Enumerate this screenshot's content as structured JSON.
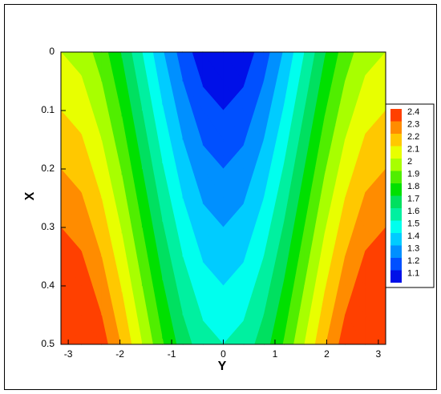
{
  "chart_data": {
    "type": "contour",
    "xlabel": "Y",
    "ylabel": "X",
    "x": [
      -3.1416,
      -2.7489,
      -2.3562,
      -1.9635,
      -1.5708,
      -1.1781,
      -0.7854,
      -0.3927,
      0,
      0.3927,
      0.7854,
      1.1781,
      1.5708,
      1.9635,
      2.3562,
      2.7489,
      3.1416
    ],
    "y": [
      0,
      0.05,
      0.1,
      0.15,
      0.2,
      0.25,
      0.3,
      0.35,
      0.4,
      0.45,
      0.5
    ],
    "z": [
      [
        2,
        1.96,
        1.85,
        1.69,
        1.5,
        1.31,
        1.15,
        1.04,
        1,
        1.04,
        1.15,
        1.31,
        1.5,
        1.69,
        1.85,
        1.96,
        2
      ],
      [
        2.05,
        2.01,
        1.9,
        1.74,
        1.55,
        1.36,
        1.2,
        1.09,
        1.05,
        1.09,
        1.2,
        1.36,
        1.55,
        1.74,
        1.9,
        2.01,
        2.05
      ],
      [
        2.1,
        2.06,
        1.95,
        1.79,
        1.6,
        1.41,
        1.25,
        1.14,
        1.1,
        1.14,
        1.25,
        1.41,
        1.6,
        1.79,
        1.95,
        2.06,
        2.1
      ],
      [
        2.15,
        2.11,
        2,
        1.84,
        1.65,
        1.46,
        1.3,
        1.19,
        1.15,
        1.19,
        1.3,
        1.46,
        1.65,
        1.84,
        2,
        2.11,
        2.15
      ],
      [
        2.2,
        2.16,
        2.05,
        1.89,
        1.7,
        1.51,
        1.35,
        1.24,
        1.2,
        1.24,
        1.35,
        1.51,
        1.7,
        1.89,
        2.05,
        2.16,
        2.2
      ],
      [
        2.25,
        2.21,
        2.1,
        1.94,
        1.75,
        1.56,
        1.4,
        1.29,
        1.25,
        1.29,
        1.4,
        1.56,
        1.75,
        1.94,
        2.1,
        2.21,
        2.25
      ],
      [
        2.3,
        2.26,
        2.15,
        1.99,
        1.8,
        1.61,
        1.45,
        1.34,
        1.3,
        1.34,
        1.45,
        1.61,
        1.8,
        1.99,
        2.15,
        2.26,
        2.3
      ],
      [
        2.35,
        2.31,
        2.2,
        2.04,
        1.85,
        1.66,
        1.5,
        1.39,
        1.35,
        1.39,
        1.5,
        1.66,
        1.85,
        2.04,
        2.2,
        2.31,
        2.35
      ],
      [
        2.4,
        2.36,
        2.25,
        2.09,
        1.9,
        1.71,
        1.55,
        1.44,
        1.4,
        1.44,
        1.55,
        1.71,
        1.9,
        2.09,
        2.25,
        2.36,
        2.4
      ],
      [
        2.45,
        2.41,
        2.3,
        2.14,
        1.95,
        1.76,
        1.6,
        1.49,
        1.45,
        1.49,
        1.6,
        1.76,
        1.95,
        2.14,
        2.3,
        2.41,
        2.45
      ],
      [
        2.5,
        2.46,
        2.35,
        2.19,
        2,
        1.81,
        1.65,
        1.54,
        1.5,
        1.54,
        1.65,
        1.81,
        2,
        2.19,
        2.35,
        2.46,
        2.5
      ]
    ],
    "levels": [
      1.1,
      1.2,
      1.3,
      1.4,
      1.5,
      1.6,
      1.7,
      1.8,
      1.9,
      2,
      2.1,
      2.2,
      2.3,
      2.4
    ],
    "colors": [
      "#0010e8",
      "#0050ff",
      "#0090ff",
      "#00ccff",
      "#00ffee",
      "#00f0a0",
      "#00e060",
      "#00e000",
      "#50ee00",
      "#a8ff00",
      "#e8ff00",
      "#ffc800",
      "#ff8c00",
      "#ff4000"
    ],
    "xlim": [
      -3.1416,
      3.1416
    ],
    "xticks": [
      -3,
      -2,
      -1,
      0,
      1,
      2,
      3
    ],
    "ylim": [
      0,
      0.5
    ],
    "y_inverted": true,
    "yticks": [
      0,
      0.1,
      0.2,
      0.3,
      0.4,
      0.5
    ],
    "legend": "right"
  }
}
